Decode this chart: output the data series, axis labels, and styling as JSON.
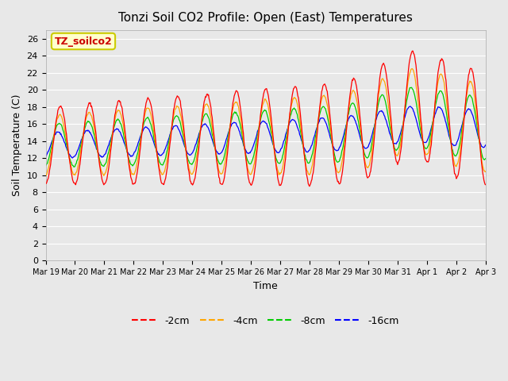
{
  "title": "Tonzi Soil CO2 Profile: Open (East) Temperatures",
  "ylabel": "Soil Temperature (C)",
  "xlabel": "Time",
  "annotation_text": "TZ_soilco2",
  "annotation_bg": "#FFFFCC",
  "annotation_border": "#CCCC00",
  "annotation_color": "#CC0000",
  "ylim": [
    0,
    27
  ],
  "yticks": [
    0,
    2,
    4,
    6,
    8,
    10,
    12,
    14,
    16,
    18,
    20,
    22,
    24,
    26
  ],
  "bg_color": "#E8E8E8",
  "plot_bg": "#E8E8E8",
  "grid_color": "#FFFFFF",
  "line_colors": {
    "-2cm": "#FF0000",
    "-4cm": "#FFA500",
    "-8cm": "#00CC00",
    "-16cm": "#0000FF"
  },
  "legend_labels": [
    "-2cm",
    "-4cm",
    "-8cm",
    "-16cm"
  ],
  "x_tick_labels": [
    "Mar 19",
    "Mar 20",
    "Mar 21",
    "Mar 22",
    "Mar 23",
    "Mar 24",
    "Mar 25",
    "Mar 26",
    "Mar 27",
    "Mar 28",
    "Mar 29",
    "Mar 30",
    "Mar 31",
    "Apr 1",
    "Apr 2",
    "Apr 3"
  ]
}
